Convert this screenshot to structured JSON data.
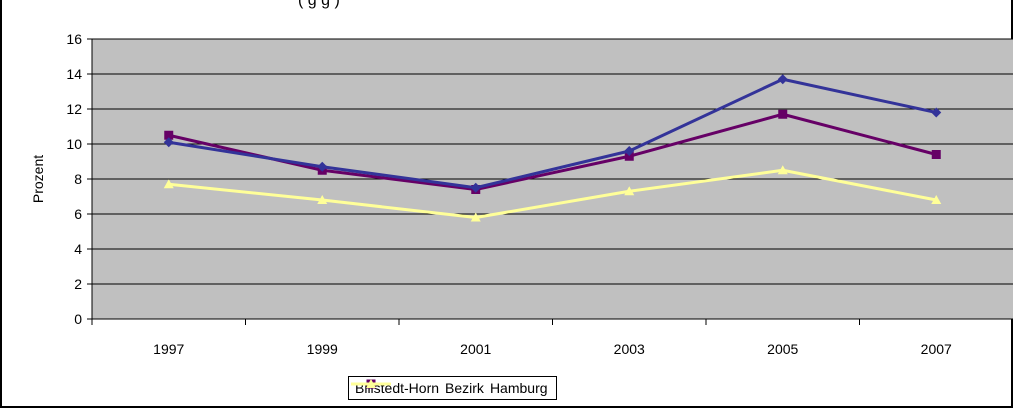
{
  "title_fragment": "(                                    g                              g )",
  "chart_data": {
    "type": "line",
    "title": "",
    "xlabel": "",
    "ylabel": "Prozent",
    "categories": [
      "1997",
      "1999",
      "2001",
      "2003",
      "2005",
      "2007"
    ],
    "ylim": [
      0,
      16
    ],
    "yticks": [
      0,
      2,
      4,
      6,
      8,
      10,
      12,
      14,
      16
    ],
    "grid": true,
    "legend_position": "bottom",
    "plot_background": "#C0C0C0",
    "series": [
      {
        "name": "Billstedt-Horn",
        "values": [
          10.1,
          8.7,
          7.5,
          9.6,
          13.7,
          11.8
        ],
        "color": "#333399",
        "marker": "diamond"
      },
      {
        "name": "Bezirk",
        "values": [
          10.5,
          8.5,
          7.4,
          9.3,
          11.7,
          9.4
        ],
        "color": "#660066",
        "marker": "square"
      },
      {
        "name": "Hamburg",
        "values": [
          7.7,
          6.8,
          5.8,
          7.3,
          8.5,
          6.8
        ],
        "color": "#FFFF99",
        "marker": "triangle"
      }
    ]
  }
}
